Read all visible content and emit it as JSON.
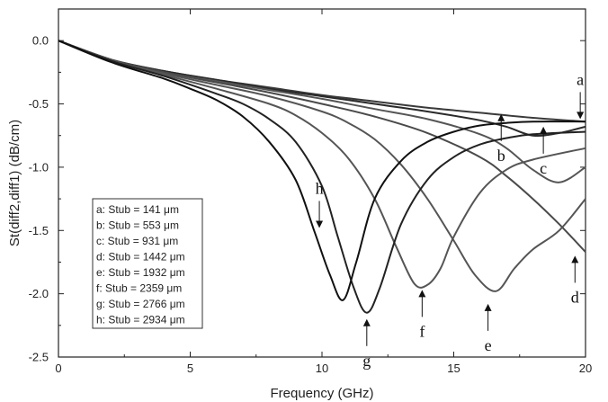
{
  "chart_data": {
    "type": "line",
    "title": "",
    "xlabel": "Frequency (GHz)",
    "ylabel": "St(diff2,diff1) (dB/cm)",
    "xlim": [
      0,
      20
    ],
    "ylim": [
      -2.5,
      0.25
    ],
    "xticks": [
      0,
      5,
      10,
      15,
      20
    ],
    "xtick_labels": [
      "0",
      "5",
      "10",
      "15",
      "20"
    ],
    "yticks": [
      0.0,
      -0.5,
      -1.0,
      -1.5,
      -2.0,
      -2.5
    ],
    "ytick_labels": [
      "0.0",
      "-0.5",
      "-1.0",
      "-1.5",
      "-2.0",
      "-2.5"
    ],
    "grid": false,
    "legend_position": "bottom-left",
    "series": [
      {
        "name": "a: Stub = 141 μm",
        "label": "a",
        "color": "#3a3a3a",
        "x": [
          0,
          2,
          4,
          6,
          8,
          10,
          12,
          14,
          16,
          18,
          20
        ],
        "y": [
          0,
          -0.15,
          -0.24,
          -0.31,
          -0.37,
          -0.43,
          -0.48,
          -0.53,
          -0.57,
          -0.61,
          -0.64
        ]
      },
      {
        "name": "b: Stub = 553 μm",
        "label": "b",
        "color": "#2a2a2a",
        "x": [
          0,
          2,
          4,
          6,
          8,
          10,
          12,
          14,
          16,
          17,
          18,
          19,
          20
        ],
        "y": [
          0,
          -0.15,
          -0.24,
          -0.31,
          -0.38,
          -0.44,
          -0.5,
          -0.56,
          -0.63,
          -0.68,
          -0.75,
          -0.73,
          -0.68
        ]
      },
      {
        "name": "c: Stub = 931 μm",
        "label": "c",
        "color": "#555555",
        "x": [
          0,
          2,
          4,
          6,
          8,
          10,
          12,
          14,
          16,
          17,
          18,
          19,
          20
        ],
        "y": [
          0,
          -0.15,
          -0.25,
          -0.32,
          -0.39,
          -0.46,
          -0.54,
          -0.62,
          -0.74,
          -0.85,
          -1.02,
          -1.12,
          -1.0
        ]
      },
      {
        "name": "d: Stub = 1442 μm",
        "label": "d",
        "color": "#4a4a4a",
        "x": [
          0,
          2,
          4,
          6,
          8,
          10,
          12,
          14,
          16,
          17,
          18,
          19,
          20
        ],
        "y": [
          0,
          -0.15,
          -0.25,
          -0.33,
          -0.41,
          -0.5,
          -0.6,
          -0.73,
          -0.92,
          -1.07,
          -1.25,
          -1.45,
          -1.67
        ]
      },
      {
        "name": "e: Stub = 1932 μm",
        "label": "e",
        "color": "#555555",
        "x": [
          0,
          2,
          4,
          6,
          8,
          10,
          11,
          12,
          13,
          14,
          15,
          15.8,
          16.6,
          17.3,
          18,
          19,
          20
        ],
        "y": [
          0,
          -0.16,
          -0.26,
          -0.35,
          -0.44,
          -0.56,
          -0.65,
          -0.78,
          -0.98,
          -1.25,
          -1.58,
          -1.85,
          -1.98,
          -1.8,
          -1.65,
          -1.5,
          -1.25
        ]
      },
      {
        "name": "f: Stub = 2359 μm",
        "label": "f",
        "color": "#555555",
        "x": [
          0,
          2,
          4,
          6,
          8,
          9,
          10,
          11,
          12,
          12.8,
          13.5,
          14,
          14.5,
          15,
          16,
          17,
          18,
          20
        ],
        "y": [
          0,
          -0.16,
          -0.27,
          -0.38,
          -0.5,
          -0.59,
          -0.73,
          -0.93,
          -1.25,
          -1.62,
          -1.92,
          -1.93,
          -1.8,
          -1.55,
          -1.2,
          -1.02,
          -0.94,
          -0.85
        ]
      },
      {
        "name": "g: Stub = 2766 μm",
        "label": "g",
        "color": "#222222",
        "x": [
          0,
          2,
          4,
          6,
          7,
          8,
          9,
          10,
          10.6,
          11.2,
          11.7,
          12.2,
          13,
          14,
          15,
          16,
          17,
          18,
          20
        ],
        "y": [
          0,
          -0.16,
          -0.28,
          -0.42,
          -0.5,
          -0.62,
          -0.8,
          -1.15,
          -1.55,
          -1.95,
          -2.15,
          -1.95,
          -1.45,
          -1.1,
          -0.92,
          -0.82,
          -0.77,
          -0.74,
          -0.72
        ]
      },
      {
        "name": "h: Stub = 2934 μm",
        "label": "h",
        "color": "#111111",
        "x": [
          0,
          2,
          4,
          5,
          6,
          7,
          8,
          9,
          9.7,
          10.3,
          10.8,
          11.3,
          12,
          13,
          14,
          15,
          16,
          17,
          18,
          20
        ],
        "y": [
          0,
          -0.17,
          -0.3,
          -0.38,
          -0.47,
          -0.6,
          -0.8,
          -1.1,
          -1.5,
          -1.85,
          -2.05,
          -1.75,
          -1.25,
          -0.95,
          -0.8,
          -0.72,
          -0.67,
          -0.65,
          -0.64,
          -0.64
        ]
      }
    ],
    "annotations": [
      {
        "label": "a",
        "x": 19.8,
        "y": -0.62,
        "dir": "down"
      },
      {
        "label": "b",
        "x": 16.8,
        "y": -0.58,
        "dir": "up"
      },
      {
        "label": "c",
        "x": 18.4,
        "y": -0.68,
        "dir": "up"
      },
      {
        "label": "d",
        "x": 19.6,
        "y": -1.7,
        "dir": "up"
      },
      {
        "label": "e",
        "x": 16.3,
        "y": -2.08,
        "dir": "up"
      },
      {
        "label": "f",
        "x": 13.8,
        "y": -1.97,
        "dir": "up"
      },
      {
        "label": "g",
        "x": 11.7,
        "y": -2.2,
        "dir": "up"
      },
      {
        "label": "h",
        "x": 9.9,
        "y": -1.48,
        "dir": "down"
      }
    ]
  }
}
